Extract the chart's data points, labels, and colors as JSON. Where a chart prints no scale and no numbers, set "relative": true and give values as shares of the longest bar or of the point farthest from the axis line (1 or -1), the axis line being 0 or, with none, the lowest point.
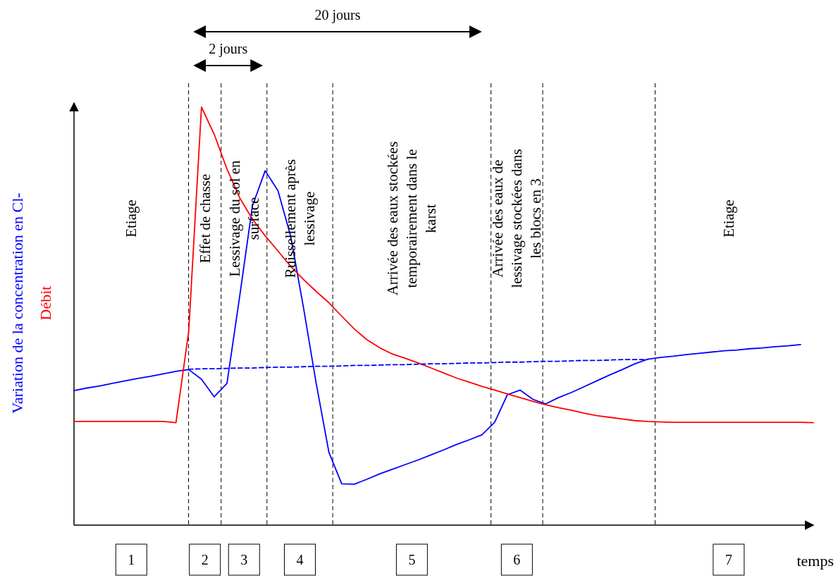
{
  "chart_data": {
    "type": "line",
    "relative": true,
    "xlabel": "temps",
    "grid": "x",
    "categories": [
      null,
      null,
      null,
      null,
      null,
      null,
      null,
      null,
      null,
      null,
      null,
      null,
      null,
      null,
      null,
      null,
      null,
      null,
      null,
      null,
      null,
      null,
      null,
      null,
      null,
      null,
      null,
      null,
      null,
      null,
      null,
      null,
      null,
      null,
      null,
      null,
      null,
      null,
      null,
      null,
      null,
      null,
      null,
      null,
      null,
      null,
      null,
      null,
      null,
      null,
      null,
      null,
      null,
      null,
      null,
      null,
      null,
      null,
      null
    ],
    "series": [
      {
        "name": "Variation de la concentration en Cl-",
        "color": "#0000ff",
        "values": [
          0.322,
          0.328,
          0.333,
          0.339,
          0.345,
          0.351,
          0.356,
          0.362,
          0.368,
          0.372,
          0.349,
          0.307,
          0.339,
          0.548,
          0.764,
          0.848,
          0.8,
          0.691,
          0.521,
          0.339,
          0.174,
          0.099,
          0.098,
          0.11,
          0.123,
          0.134,
          0.145,
          0.156,
          0.168,
          0.18,
          0.193,
          0.204,
          0.216,
          0.246,
          0.312,
          0.323,
          0.301,
          0.29,
          0.305,
          0.317,
          0.331,
          0.345,
          0.359,
          0.372,
          0.386,
          0.397,
          0.401,
          0.404,
          0.408,
          0.411,
          0.414,
          0.417,
          0.419,
          0.422,
          0.424,
          0.427,
          0.429,
          0.432,
          null
        ]
      },
      {
        "name": "Débit",
        "color": "#ff0000",
        "values": [
          0.248,
          0.248,
          0.248,
          0.248,
          0.248,
          0.248,
          0.248,
          0.248,
          0.245,
          0.464,
          1,
          0.935,
          0.852,
          0.783,
          0.732,
          0.692,
          0.656,
          0.619,
          0.588,
          0.559,
          0.532,
          0.5,
          0.469,
          0.443,
          0.424,
          0.409,
          0.399,
          0.388,
          0.376,
          0.364,
          0.352,
          0.342,
          0.332,
          0.323,
          0.314,
          0.305,
          0.296,
          0.288,
          0.281,
          0.275,
          0.268,
          0.262,
          0.258,
          0.254,
          0.25,
          0.248,
          0.247,
          0.246,
          0.246,
          0.246,
          0.246,
          0.246,
          0.246,
          0.246,
          0.246,
          0.246,
          0.246,
          0.246,
          0.245
        ]
      },
      {
        "color": "#0000ff",
        "line_style": "dashed",
        "values": [
          null,
          null,
          null,
          null,
          null,
          null,
          null,
          null,
          null,
          0.373,
          0.374,
          0.374,
          0.375,
          0.376,
          0.376,
          0.377,
          0.378,
          0.378,
          0.379,
          0.38,
          0.38,
          0.381,
          0.382,
          0.382,
          0.383,
          0.384,
          0.384,
          0.385,
          0.386,
          0.386,
          0.387,
          0.388,
          0.388,
          0.389,
          0.39,
          0.39,
          0.391,
          0.392,
          0.392,
          0.393,
          0.394,
          0.394,
          0.395,
          0.396,
          0.396,
          0.396,
          null,
          null,
          null,
          null,
          null,
          null,
          null,
          null,
          null,
          null,
          null,
          null,
          null
        ]
      }
    ],
    "annotations": [
      "Etiage",
      "Effet de chasse",
      "Lessivage du sol en surface",
      "Ruissellement après lessivage",
      "Arrivée des eaux stockées temporairement dans le karst",
      "Arrivée des eaux de lessivage stockées dans les blocs en 3",
      "Etiage",
      "1",
      "2",
      "3",
      "4",
      "5",
      "6",
      "7",
      "20 jours",
      "2 jours"
    ]
  }
}
